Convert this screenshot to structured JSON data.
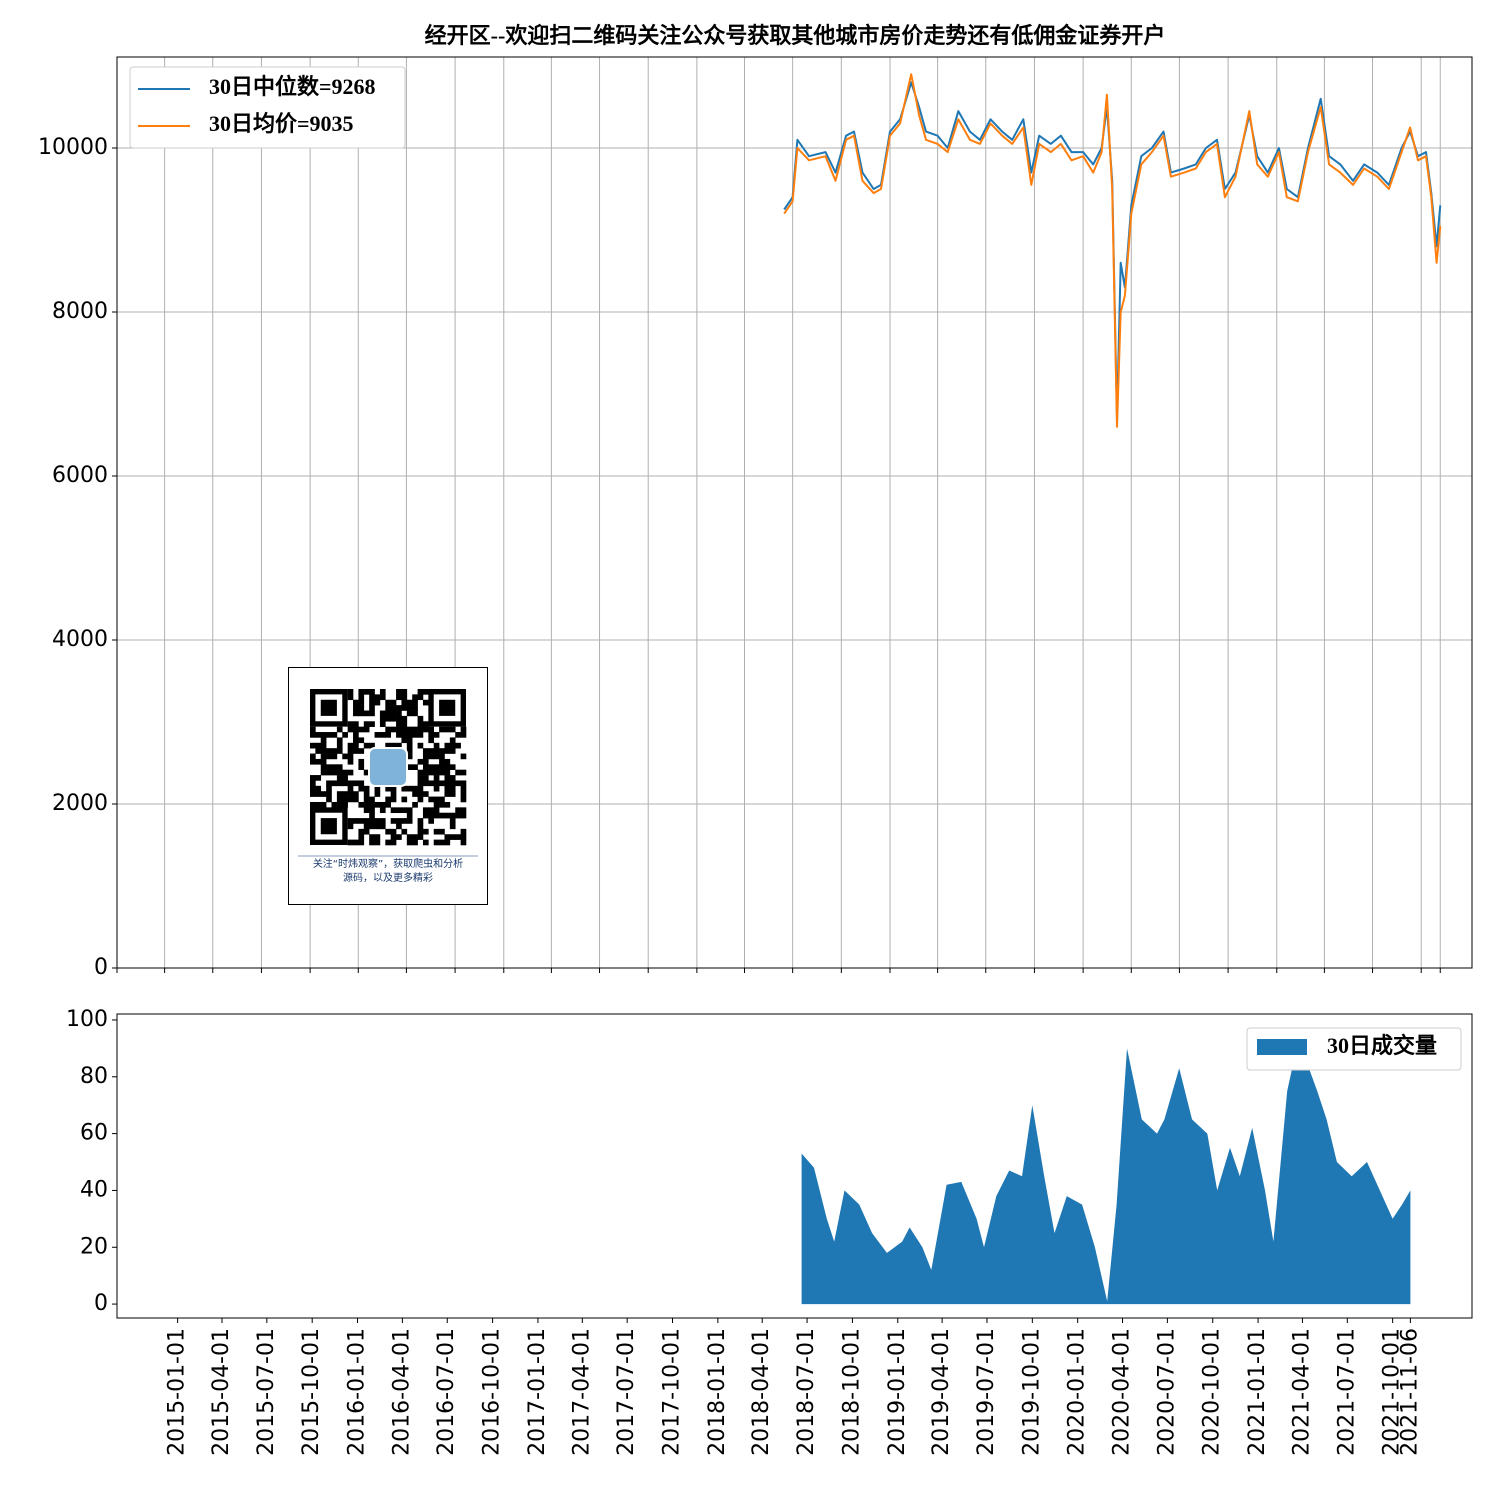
{
  "chart_data": [
    {
      "type": "line",
      "title": "经开区--欢迎扫二维码关注公众号获取其他城市房价走势还有低佣金证券开户",
      "xlim": [
        "2015-01-01",
        "2022-01-05"
      ],
      "ylim": [
        0,
        11110
      ],
      "yticks": [
        0,
        2000,
        4000,
        6000,
        8000,
        10000
      ],
      "grid": true,
      "legend": "upper left",
      "x": [
        "2018-06-15",
        "2018-07-01",
        "2018-07-10",
        "2018-08-01",
        "2018-09-01",
        "2018-09-20",
        "2018-10-10",
        "2018-10-25",
        "2018-11-10",
        "2018-12-01",
        "2018-12-15",
        "2019-01-01",
        "2019-01-20",
        "2019-02-10",
        "2019-02-25",
        "2019-03-10",
        "2019-04-01",
        "2019-04-20",
        "2019-05-10",
        "2019-06-01",
        "2019-06-20",
        "2019-07-10",
        "2019-08-01",
        "2019-08-20",
        "2019-09-10",
        "2019-09-25",
        "2019-10-10",
        "2019-11-01",
        "2019-11-20",
        "2019-12-10",
        "2020-01-01",
        "2020-01-20",
        "2020-02-05",
        "2020-02-15",
        "2020-02-25",
        "2020-03-05",
        "2020-03-12",
        "2020-03-20",
        "2020-04-01",
        "2020-04-20",
        "2020-05-10",
        "2020-06-01",
        "2020-06-15",
        "2020-07-10",
        "2020-08-01",
        "2020-08-20",
        "2020-09-10",
        "2020-09-25",
        "2020-10-15",
        "2020-11-10",
        "2020-11-25",
        "2020-12-15",
        "2021-01-05",
        "2021-01-20",
        "2021-02-10",
        "2021-03-01",
        "2021-03-25",
        "2021-04-10",
        "2021-05-01",
        "2021-05-25",
        "2021-06-15",
        "2021-07-10",
        "2021-08-01",
        "2021-08-25",
        "2021-09-10",
        "2021-09-25",
        "2021-10-10",
        "2021-10-20",
        "2021-10-30",
        "2021-11-06"
      ],
      "series": [
        {
          "name": "30日中位数=9268",
          "color": "#1f77b4",
          "values": [
            9250,
            9400,
            10100,
            9900,
            9950,
            9700,
            10150,
            10200,
            9700,
            9500,
            9550,
            10200,
            10350,
            10800,
            10500,
            10200,
            10150,
            10000,
            10450,
            10200,
            10100,
            10350,
            10200,
            10100,
            10350,
            9700,
            10150,
            10050,
            10150,
            9950,
            9950,
            9800,
            10000,
            10500,
            9600,
            6700,
            8600,
            8300,
            9300,
            9900,
            10000,
            10200,
            9700,
            9750,
            9800,
            10000,
            10100,
            9500,
            9700,
            10400,
            9900,
            9700,
            10000,
            9500,
            9400,
            10000,
            10600,
            9900,
            9800,
            9600,
            9800,
            9700,
            9550,
            10000,
            10200,
            9900,
            9950,
            9450,
            8800,
            9300
          ]
        },
        {
          "name": "30日均价=9035",
          "color": "#ff7f0e",
          "values": [
            9200,
            9350,
            10000,
            9850,
            9900,
            9600,
            10100,
            10150,
            9600,
            9450,
            9500,
            10150,
            10300,
            10900,
            10400,
            10100,
            10050,
            9950,
            10350,
            10100,
            10050,
            10300,
            10150,
            10050,
            10250,
            9550,
            10050,
            9950,
            10050,
            9850,
            9900,
            9700,
            9950,
            10650,
            9500,
            6600,
            8000,
            8200,
            9200,
            9800,
            9950,
            10150,
            9650,
            9700,
            9750,
            9950,
            10050,
            9400,
            9650,
            10450,
            9800,
            9650,
            9950,
            9400,
            9350,
            9950,
            10500,
            9800,
            9700,
            9550,
            9750,
            9650,
            9500,
            9950,
            10250,
            9850,
            9900,
            9400,
            8600,
            9050
          ]
        }
      ]
    },
    {
      "type": "area",
      "xlim": [
        "2014-08-31",
        "2022-03-11"
      ],
      "ylim": [
        -4.9,
        102.1
      ],
      "yticks": [
        0,
        20,
        40,
        60,
        80,
        100
      ],
      "xticks": [
        "2015-01-01",
        "2015-04-01",
        "2015-07-01",
        "2015-10-01",
        "2016-01-01",
        "2016-04-01",
        "2016-07-01",
        "2016-10-01",
        "2017-01-01",
        "2017-04-01",
        "2017-07-01",
        "2017-10-01",
        "2018-01-01",
        "2018-04-01",
        "2018-07-01",
        "2018-10-01",
        "2019-01-01",
        "2019-04-01",
        "2019-07-01",
        "2019-10-01",
        "2020-01-01",
        "2020-04-01",
        "2020-07-01",
        "2020-10-01",
        "2021-01-01",
        "2021-04-01",
        "2021-07-01",
        "2021-10-01",
        "2021-11-06"
      ],
      "legend": "upper right",
      "x": [
        "2018-06-20",
        "2018-07-15",
        "2018-08-10",
        "2018-08-25",
        "2018-09-15",
        "2018-10-15",
        "2018-11-10",
        "2018-12-10",
        "2019-01-10",
        "2019-01-25",
        "2019-02-20",
        "2019-03-10",
        "2019-04-10",
        "2019-05-10",
        "2019-06-10",
        "2019-06-25",
        "2019-07-20",
        "2019-08-15",
        "2019-09-10",
        "2019-10-01",
        "2019-10-25",
        "2019-11-15",
        "2019-12-10",
        "2020-01-10",
        "2020-02-05",
        "2020-03-01",
        "2020-03-20",
        "2020-04-10",
        "2020-05-10",
        "2020-06-10",
        "2020-06-25",
        "2020-07-25",
        "2020-08-20",
        "2020-09-20",
        "2020-10-10",
        "2020-11-05",
        "2020-11-25",
        "2020-12-20",
        "2021-01-15",
        "2021-02-01",
        "2021-03-01",
        "2021-03-20",
        "2021-04-10",
        "2021-05-01",
        "2021-05-20",
        "2021-06-10",
        "2021-07-10",
        "2021-08-10",
        "2021-09-05",
        "2021-10-01",
        "2021-10-20",
        "2021-11-06"
      ],
      "series": [
        {
          "name": "30日成交量",
          "color": "#1f77b4",
          "values": [
            53,
            48,
            30,
            22,
            40,
            35,
            25,
            18,
            22,
            27,
            20,
            12,
            42,
            43,
            30,
            20,
            38,
            47,
            45,
            70,
            45,
            25,
            38,
            35,
            20,
            1,
            35,
            90,
            65,
            60,
            65,
            83,
            65,
            60,
            40,
            55,
            45,
            62,
            40,
            22,
            75,
            90,
            85,
            75,
            65,
            50,
            45,
            50,
            40,
            30,
            35,
            40
          ]
        }
      ]
    }
  ],
  "qr_caption": [
    "关注“时炜观察”，获取爬虫和分析",
    "源码，以及更多精彩"
  ]
}
